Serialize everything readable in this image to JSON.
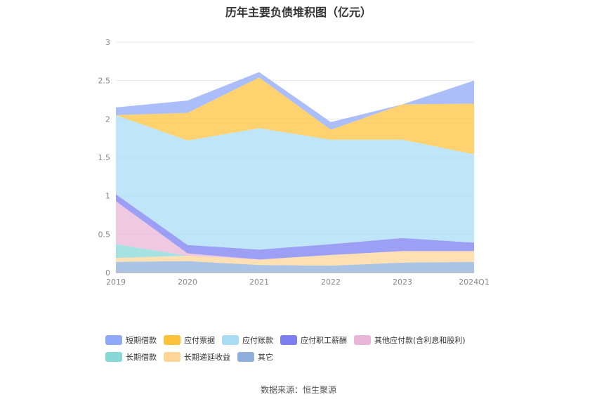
{
  "chart_data": {
    "type": "area",
    "title": "历年主要负债堆积图（亿元）",
    "categories": [
      "2019",
      "2020",
      "2021",
      "2022",
      "2023",
      "2024Q1"
    ],
    "ylim": [
      0,
      3
    ],
    "yticks": [
      "0",
      "0.5",
      "1",
      "1.5",
      "2",
      "2.5",
      "3"
    ],
    "grid": true,
    "legend_position": "bottom",
    "series": [
      {
        "name": "其它",
        "color": "#8fb0dd",
        "values": [
          0.14,
          0.15,
          0.1,
          0.09,
          0.13,
          0.14
        ]
      },
      {
        "name": "长期递延收益",
        "color": "#ffd699",
        "values": [
          0.05,
          0.07,
          0.07,
          0.14,
          0.15,
          0.14
        ]
      },
      {
        "name": "长期借款",
        "color": "#88d8d8",
        "values": [
          0.18,
          0.0,
          0.0,
          0.0,
          0.0,
          0.0
        ]
      },
      {
        "name": "其他应付款(含利息和股利)",
        "color": "#eab6d8",
        "values": [
          0.56,
          0.03,
          0.0,
          0.0,
          0.0,
          0.0
        ]
      },
      {
        "name": "应付职工薪酬",
        "color": "#7b7ff0",
        "values": [
          0.09,
          0.11,
          0.13,
          0.14,
          0.17,
          0.11
        ]
      },
      {
        "name": "应付账款",
        "color": "#a8dcf5",
        "values": [
          1.03,
          1.36,
          1.58,
          1.36,
          1.28,
          1.15
        ]
      },
      {
        "name": "应付票据",
        "color": "#fdc33d",
        "values": [
          0.0,
          0.36,
          0.66,
          0.13,
          0.46,
          0.66
        ]
      },
      {
        "name": "短期借款",
        "color": "#8fa8f8",
        "values": [
          0.1,
          0.16,
          0.07,
          0.1,
          0.0,
          0.3
        ]
      }
    ],
    "legend": [
      [
        "短期借款",
        "应付票据",
        "应付账款",
        "应付职工薪酬",
        "其他应付款(含利息和股利)"
      ],
      [
        "长期借款",
        "长期递延收益",
        "其它"
      ]
    ]
  },
  "source_text": "数据来源：恒生聚源"
}
